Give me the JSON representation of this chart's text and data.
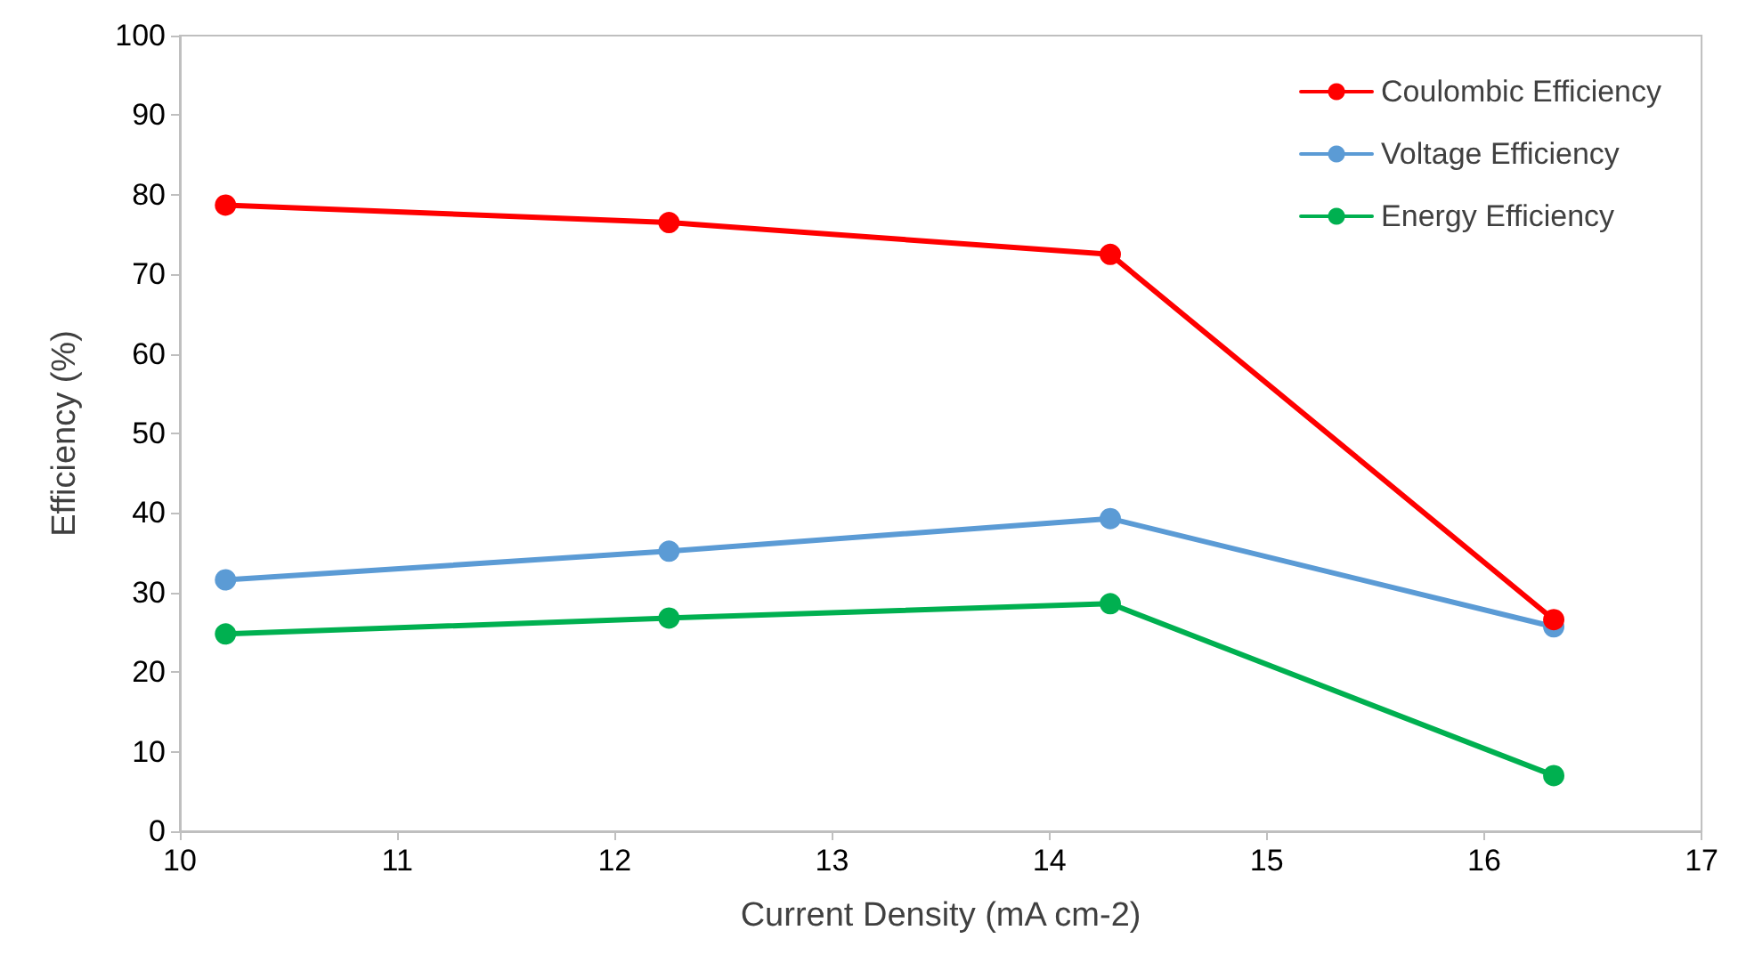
{
  "chart_data": {
    "type": "line",
    "xlabel": "Current Density (mA cm-2)",
    "ylabel": "Efficiency (%)",
    "x": [
      10.21,
      12.25,
      14.28,
      16.32
    ],
    "series": [
      {
        "name": "Coulombic Efficiency",
        "color": "#ff0000",
        "values": [
          78.7,
          76.5,
          72.5,
          26.6
        ]
      },
      {
        "name": "Voltage Efficiency",
        "color": "#5b9bd5",
        "values": [
          31.6,
          35.2,
          39.3,
          25.7
        ]
      },
      {
        "name": "Energy Efficiency",
        "color": "#00b050",
        "values": [
          24.8,
          26.8,
          28.6,
          7.0
        ]
      }
    ],
    "xlim": [
      10,
      17
    ],
    "xticks": [
      10,
      11,
      12,
      13,
      14,
      15,
      16,
      17
    ],
    "ylim": [
      0,
      100
    ],
    "yticks": [
      0,
      10,
      20,
      30,
      40,
      50,
      60,
      70,
      80,
      90,
      100
    ],
    "grid": false,
    "legend": "top right",
    "marker": "circle",
    "line_style": "solid"
  }
}
